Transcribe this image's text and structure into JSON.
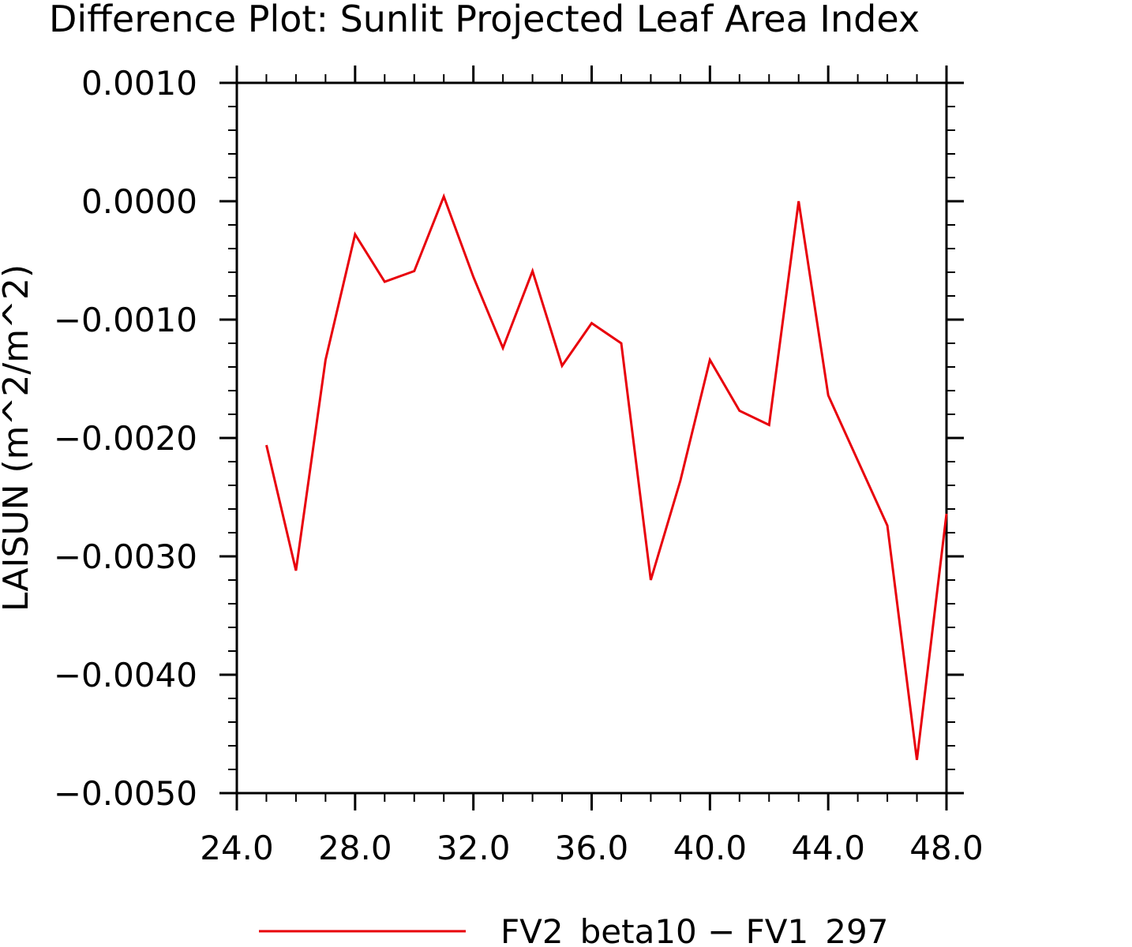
{
  "chart_data": {
    "type": "line",
    "title": "Difference Plot: Sunlit Projected Leaf Area Index",
    "ylabel": "LAISUN   (m^2/m^2)",
    "xlabel": "",
    "xlim": [
      24,
      48
    ],
    "ylim": [
      -0.005,
      0.001
    ],
    "x_ticks": [
      24,
      28,
      32,
      36,
      40,
      44,
      48
    ],
    "x_tick_labels": [
      "24.0",
      "28.0",
      "32.0",
      "36.0",
      "40.0",
      "44.0",
      "48.0"
    ],
    "y_ticks": [
      0.001,
      0.0,
      -0.001,
      -0.002,
      -0.003,
      -0.004,
      -0.005
    ],
    "y_tick_labels": [
      "0.0010",
      "0.0000",
      "−0.0010",
      "−0.0020",
      "−0.0030",
      "−0.0040",
      "−0.0050"
    ],
    "grid": false,
    "legend_position": "bottom-center",
    "series": [
      {
        "name": "FV2_beta10 − FV1_297",
        "color": "#e8000b",
        "x": [
          25,
          26,
          27,
          28,
          29,
          30,
          31,
          32,
          33,
          34,
          35,
          36,
          37,
          38,
          39,
          40,
          41,
          42,
          43,
          44,
          45,
          46,
          47,
          48
        ],
        "y": [
          -0.00206,
          -0.00312,
          -0.00134,
          -0.00028,
          -0.00068,
          -0.00059,
          4e-05,
          -0.00064,
          -0.00124,
          -0.00059,
          -0.00139,
          -0.00103,
          -0.0012,
          -0.0032,
          -0.00236,
          -0.00134,
          -0.00177,
          -0.00189,
          0.0,
          -0.00164,
          -0.00219,
          -0.00274,
          -0.00472,
          -0.00264
        ]
      }
    ]
  }
}
